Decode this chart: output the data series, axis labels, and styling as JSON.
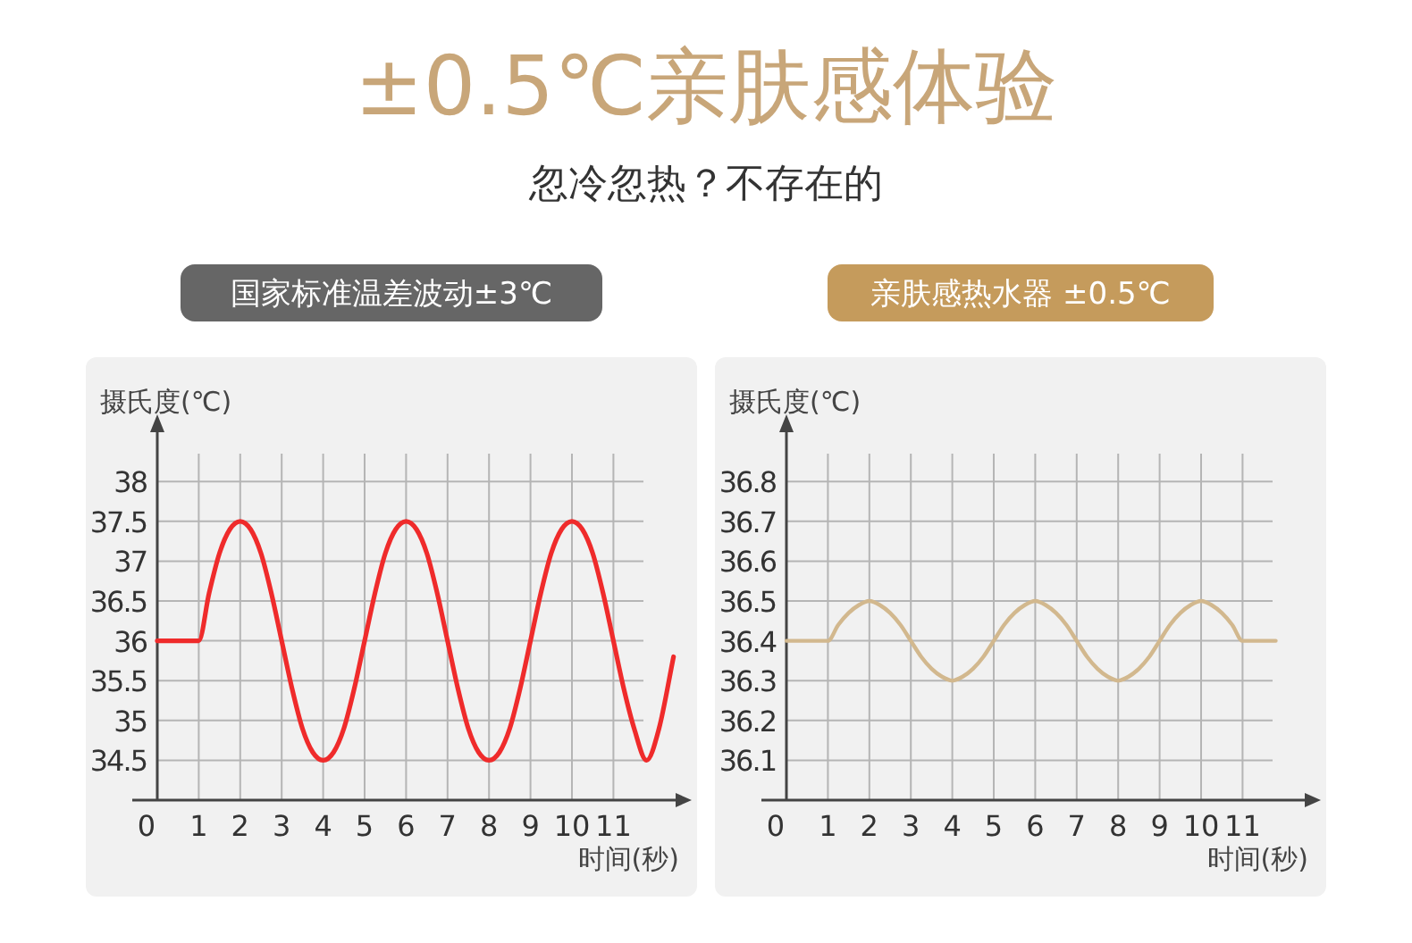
{
  "chart_data": [
    {
      "type": "other",
      "title": "±0.5℃亲肤感体验",
      "subtitle": "忽冷忽热？不存在的"
    },
    {
      "type": "line",
      "title": "国家标准温差波动±3℃",
      "xlabel": "时间(秒)",
      "ylabel": "摄氏度(℃)",
      "xlim": [
        0,
        12.5
      ],
      "ylim": [
        34,
        38.35
      ],
      "xticks": [
        0,
        1,
        2,
        3,
        4,
        5,
        6,
        7,
        8,
        9,
        10,
        11
      ],
      "yticks": [
        34.5,
        35,
        35.5,
        36,
        36.5,
        37,
        37.5,
        38
      ],
      "grid": true,
      "series": [
        {
          "color": "#ef2b2b",
          "x": [
            0,
            1,
            1.25,
            1.5,
            1.75,
            2,
            2.25,
            2.5,
            2.75,
            3,
            3.25,
            3.5,
            3.75,
            4,
            4.25,
            4.5,
            4.75,
            5,
            5.25,
            5.5,
            5.75,
            6,
            6.25,
            6.5,
            6.75,
            7,
            7.25,
            7.5,
            7.75,
            8,
            8.25,
            8.5,
            8.75,
            9,
            9.25,
            9.5,
            9.75,
            10,
            10.25,
            10.5,
            10.75,
            11,
            11.25,
            11.5,
            11.8,
            12.1,
            12.45
          ],
          "values": [
            36,
            36,
            36.6,
            37.1,
            37.4,
            37.5,
            37.4,
            37.1,
            36.6,
            36,
            35.4,
            34.9,
            34.6,
            34.5,
            34.6,
            34.9,
            35.4,
            36,
            36.6,
            37.1,
            37.4,
            37.5,
            37.4,
            37.1,
            36.6,
            36,
            35.4,
            34.9,
            34.6,
            34.5,
            34.6,
            34.9,
            35.4,
            36,
            36.6,
            37.1,
            37.4,
            37.5,
            37.4,
            37.1,
            36.6,
            36,
            35.4,
            34.9,
            34.5,
            34.9,
            35.8
          ]
        }
      ]
    },
    {
      "type": "line",
      "title": "亲肤感热水器 ±0.5℃",
      "xlabel": "时间(秒)",
      "ylabel": "摄氏度(℃)",
      "xlim": [
        0,
        12.5
      ],
      "ylim": [
        36,
        36.87
      ],
      "xticks": [
        0,
        1,
        2,
        3,
        4,
        5,
        6,
        7,
        8,
        9,
        10,
        11
      ],
      "yticks": [
        36.1,
        36.2,
        36.3,
        36.4,
        36.5,
        36.6,
        36.7,
        36.8
      ],
      "grid": true,
      "series": [
        {
          "color": "#d2b88e",
          "x": [
            0,
            1,
            1.25,
            1.5,
            1.75,
            2,
            2.25,
            2.5,
            2.75,
            3,
            3.25,
            3.5,
            3.75,
            4,
            4.25,
            4.5,
            4.75,
            5,
            5.25,
            5.5,
            5.75,
            6,
            6.25,
            6.5,
            6.75,
            7,
            7.25,
            7.5,
            7.75,
            8,
            8.25,
            8.5,
            8.75,
            9,
            9.25,
            9.5,
            9.75,
            10,
            10.25,
            10.5,
            10.75,
            11,
            11.8
          ],
          "values": [
            36.4,
            36.4,
            36.44,
            36.47,
            36.49,
            36.5,
            36.49,
            36.47,
            36.44,
            36.4,
            36.36,
            36.33,
            36.31,
            36.3,
            36.31,
            36.33,
            36.36,
            36.4,
            36.44,
            36.47,
            36.49,
            36.5,
            36.49,
            36.47,
            36.44,
            36.4,
            36.36,
            36.33,
            36.31,
            36.3,
            36.31,
            36.33,
            36.36,
            36.4,
            36.44,
            36.47,
            36.49,
            36.5,
            36.49,
            36.47,
            36.44,
            36.4,
            36.4
          ]
        }
      ]
    }
  ]
}
